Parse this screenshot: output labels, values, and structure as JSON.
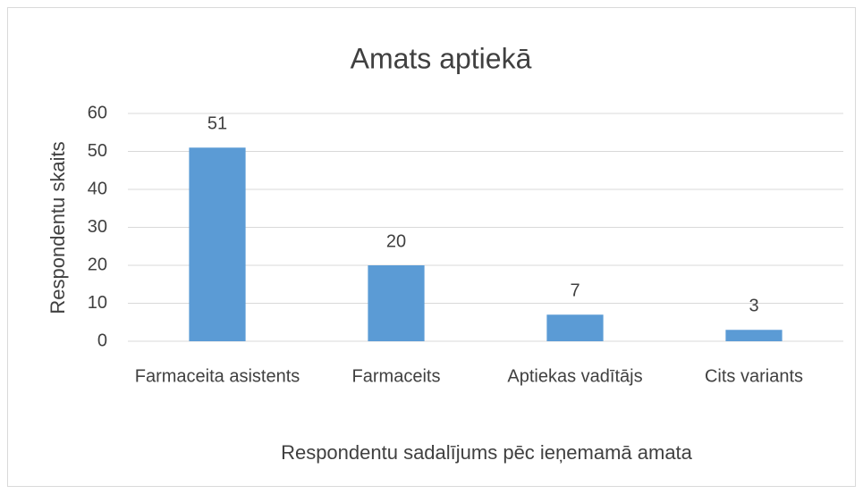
{
  "chart_data": {
    "type": "bar",
    "title": "Amats aptiekā",
    "y_label": "Respondentu skaits",
    "x_label": "Respondentu sadalījums pēc ieņemamā amata",
    "categories": [
      "Farmaceita asistents",
      "Farmaceits",
      "Aptiekas vadītājs",
      "Cits variants"
    ],
    "values": [
      51,
      20,
      7,
      3
    ],
    "color": "#5b9bd5",
    "ylim": [
      0,
      60
    ],
    "yticks": [
      0,
      10,
      20,
      30,
      40,
      50,
      60
    ],
    "grid": true
  }
}
